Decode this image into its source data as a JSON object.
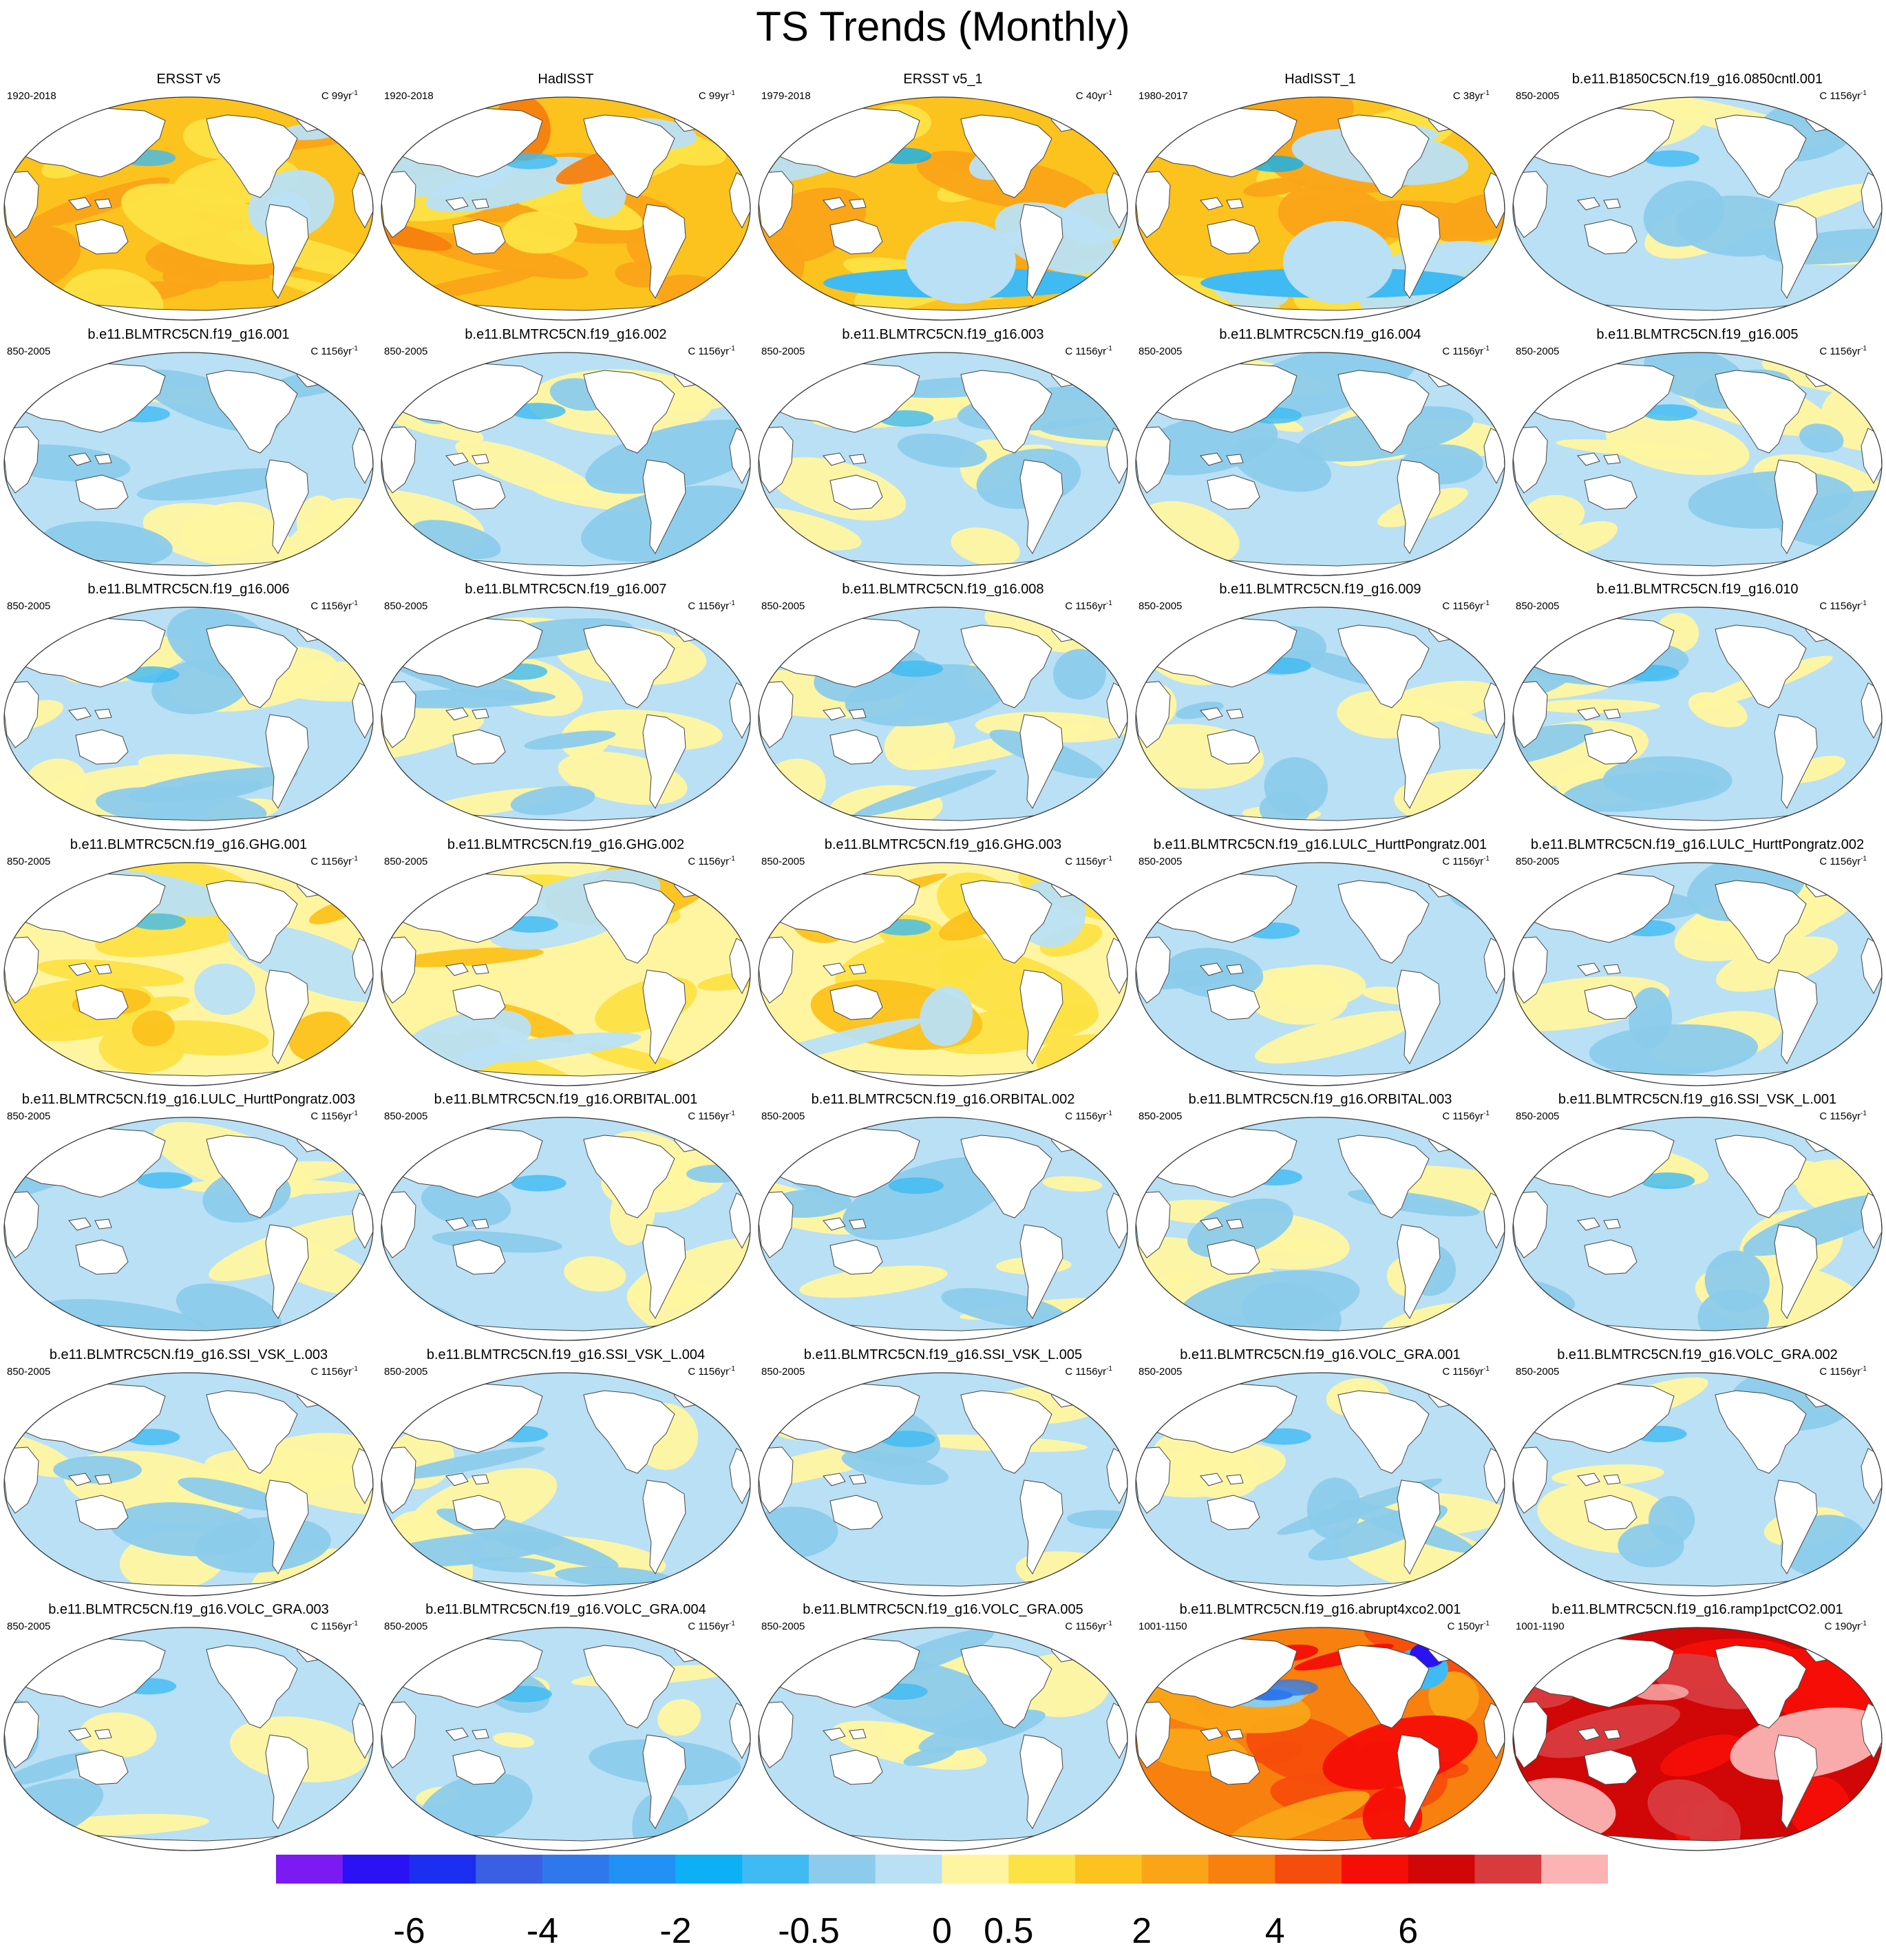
{
  "chart_data": {
    "type": "heatmap",
    "title": "TS Trends (Monthly)",
    "colorbar": {
      "colors": [
        "#7b1bf2",
        "#2a12f5",
        "#1c2ef0",
        "#3b5fe3",
        "#2f78ec",
        "#2291f5",
        "#0db0f5",
        "#3fbaf3",
        "#8ccbeb",
        "#b9e0f5",
        "#fff5a0",
        "#fde245",
        "#fcc21d",
        "#faa418",
        "#f7800f",
        "#f54d0c",
        "#f50e06",
        "#d10606",
        "#d83b3e",
        "#fbb3b3"
      ],
      "tick_labels": [
        "-6",
        "-4",
        "-2",
        "-0.5",
        "0",
        "0.5",
        "2",
        "4",
        "6"
      ],
      "tick_boundaries": [
        2,
        4,
        6,
        8,
        10,
        11,
        13,
        15,
        17
      ]
    },
    "panels": [
      {
        "title": "ERSST v5",
        "period": "1920-2018",
        "units": "C 99yr",
        "sup": "-1",
        "style": "warm"
      },
      {
        "title": "HadISST",
        "period": "1920-2018",
        "units": "C 99yr",
        "sup": "-1",
        "style": "warmgrainy"
      },
      {
        "title": "ERSST v5_1",
        "period": "1979-2018",
        "units": "C 40yr",
        "sup": "-1",
        "style": "warmcoolsouth"
      },
      {
        "title": "HadISST_1",
        "period": "1980-2017",
        "units": "C 38yr",
        "sup": "-1",
        "style": "warmcoolsouth"
      },
      {
        "title": "b.e11.B1850C5CN.f19_g16.0850cntl.001",
        "period": "850-2005",
        "units": "C 1156yr",
        "sup": "-1",
        "style": "cool"
      },
      {
        "title": "b.e11.BLMTRC5CN.f19_g16.001",
        "period": "850-2005",
        "units": "C 1156yr",
        "sup": "-1",
        "style": "mixed"
      },
      {
        "title": "b.e11.BLMTRC5CN.f19_g16.002",
        "period": "850-2005",
        "units": "C 1156yr",
        "sup": "-1",
        "style": "mixed"
      },
      {
        "title": "b.e11.BLMTRC5CN.f19_g16.003",
        "period": "850-2005",
        "units": "C 1156yr",
        "sup": "-1",
        "style": "mixed"
      },
      {
        "title": "b.e11.BLMTRC5CN.f19_g16.004",
        "period": "850-2005",
        "units": "C 1156yr",
        "sup": "-1",
        "style": "mixed"
      },
      {
        "title": "b.e11.BLMTRC5CN.f19_g16.005",
        "period": "850-2005",
        "units": "C 1156yr",
        "sup": "-1",
        "style": "mixed"
      },
      {
        "title": "b.e11.BLMTRC5CN.f19_g16.006",
        "period": "850-2005",
        "units": "C 1156yr",
        "sup": "-1",
        "style": "mixed"
      },
      {
        "title": "b.e11.BLMTRC5CN.f19_g16.007",
        "period": "850-2005",
        "units": "C 1156yr",
        "sup": "-1",
        "style": "mixed"
      },
      {
        "title": "b.e11.BLMTRC5CN.f19_g16.008",
        "period": "850-2005",
        "units": "C 1156yr",
        "sup": "-1",
        "style": "mixed"
      },
      {
        "title": "b.e11.BLMTRC5CN.f19_g16.009",
        "period": "850-2005",
        "units": "C 1156yr",
        "sup": "-1",
        "style": "mixed"
      },
      {
        "title": "b.e11.BLMTRC5CN.f19_g16.010",
        "period": "850-2005",
        "units": "C 1156yr",
        "sup": "-1",
        "style": "mixed"
      },
      {
        "title": "b.e11.BLMTRC5CN.f19_g16.GHG.001",
        "period": "850-2005",
        "units": "C 1156yr",
        "sup": "-1",
        "style": "yellow"
      },
      {
        "title": "b.e11.BLMTRC5CN.f19_g16.GHG.002",
        "period": "850-2005",
        "units": "C 1156yr",
        "sup": "-1",
        "style": "yellow"
      },
      {
        "title": "b.e11.BLMTRC5CN.f19_g16.GHG.003",
        "period": "850-2005",
        "units": "C 1156yr",
        "sup": "-1",
        "style": "yellow"
      },
      {
        "title": "b.e11.BLMTRC5CN.f19_g16.LULC_HurttPongratz.001",
        "period": "850-2005",
        "units": "C 1156yr",
        "sup": "-1",
        "style": "cool"
      },
      {
        "title": "b.e11.BLMTRC5CN.f19_g16.LULC_HurttPongratz.002",
        "period": "850-2005",
        "units": "C 1156yr",
        "sup": "-1",
        "style": "cool"
      },
      {
        "title": "b.e11.BLMTRC5CN.f19_g16.LULC_HurttPongratz.003",
        "period": "850-2005",
        "units": "C 1156yr",
        "sup": "-1",
        "style": "cool"
      },
      {
        "title": "b.e11.BLMTRC5CN.f19_g16.ORBITAL.001",
        "period": "850-2005",
        "units": "C 1156yr",
        "sup": "-1",
        "style": "mixed"
      },
      {
        "title": "b.e11.BLMTRC5CN.f19_g16.ORBITAL.002",
        "period": "850-2005",
        "units": "C 1156yr",
        "sup": "-1",
        "style": "cool"
      },
      {
        "title": "b.e11.BLMTRC5CN.f19_g16.ORBITAL.003",
        "period": "850-2005",
        "units": "C 1156yr",
        "sup": "-1",
        "style": "mixed"
      },
      {
        "title": "b.e11.BLMTRC5CN.f19_g16.SSI_VSK_L.001",
        "period": "850-2005",
        "units": "C 1156yr",
        "sup": "-1",
        "style": "cool"
      },
      {
        "title": "b.e11.BLMTRC5CN.f19_g16.SSI_VSK_L.003",
        "period": "850-2005",
        "units": "C 1156yr",
        "sup": "-1",
        "style": "mixed"
      },
      {
        "title": "b.e11.BLMTRC5CN.f19_g16.SSI_VSK_L.004",
        "period": "850-2005",
        "units": "C 1156yr",
        "sup": "-1",
        "style": "mixed"
      },
      {
        "title": "b.e11.BLMTRC5CN.f19_g16.SSI_VSK_L.005",
        "period": "850-2005",
        "units": "C 1156yr",
        "sup": "-1",
        "style": "cool"
      },
      {
        "title": "b.e11.BLMTRC5CN.f19_g16.VOLC_GRA.001",
        "period": "850-2005",
        "units": "C 1156yr",
        "sup": "-1",
        "style": "cool"
      },
      {
        "title": "b.e11.BLMTRC5CN.f19_g16.VOLC_GRA.002",
        "period": "850-2005",
        "units": "C 1156yr",
        "sup": "-1",
        "style": "cool"
      },
      {
        "title": "b.e11.BLMTRC5CN.f19_g16.VOLC_GRA.003",
        "period": "850-2005",
        "units": "C 1156yr",
        "sup": "-1",
        "style": "cool"
      },
      {
        "title": "b.e11.BLMTRC5CN.f19_g16.VOLC_GRA.004",
        "period": "850-2005",
        "units": "C 1156yr",
        "sup": "-1",
        "style": "cool"
      },
      {
        "title": "b.e11.BLMTRC5CN.f19_g16.VOLC_GRA.005",
        "period": "850-2005",
        "units": "C 1156yr",
        "sup": "-1",
        "style": "cool"
      },
      {
        "title": "b.e11.BLMTRC5CN.f19_g16.abrupt4xco2.001",
        "period": "1001-1150",
        "units": "C 150yr",
        "sup": "-1",
        "style": "hot"
      },
      {
        "title": "b.e11.BLMTRC5CN.f19_g16.ramp1pctCO2.001",
        "period": "1001-1190",
        "units": "C 190yr",
        "sup": "-1",
        "style": "veryhot"
      }
    ]
  }
}
